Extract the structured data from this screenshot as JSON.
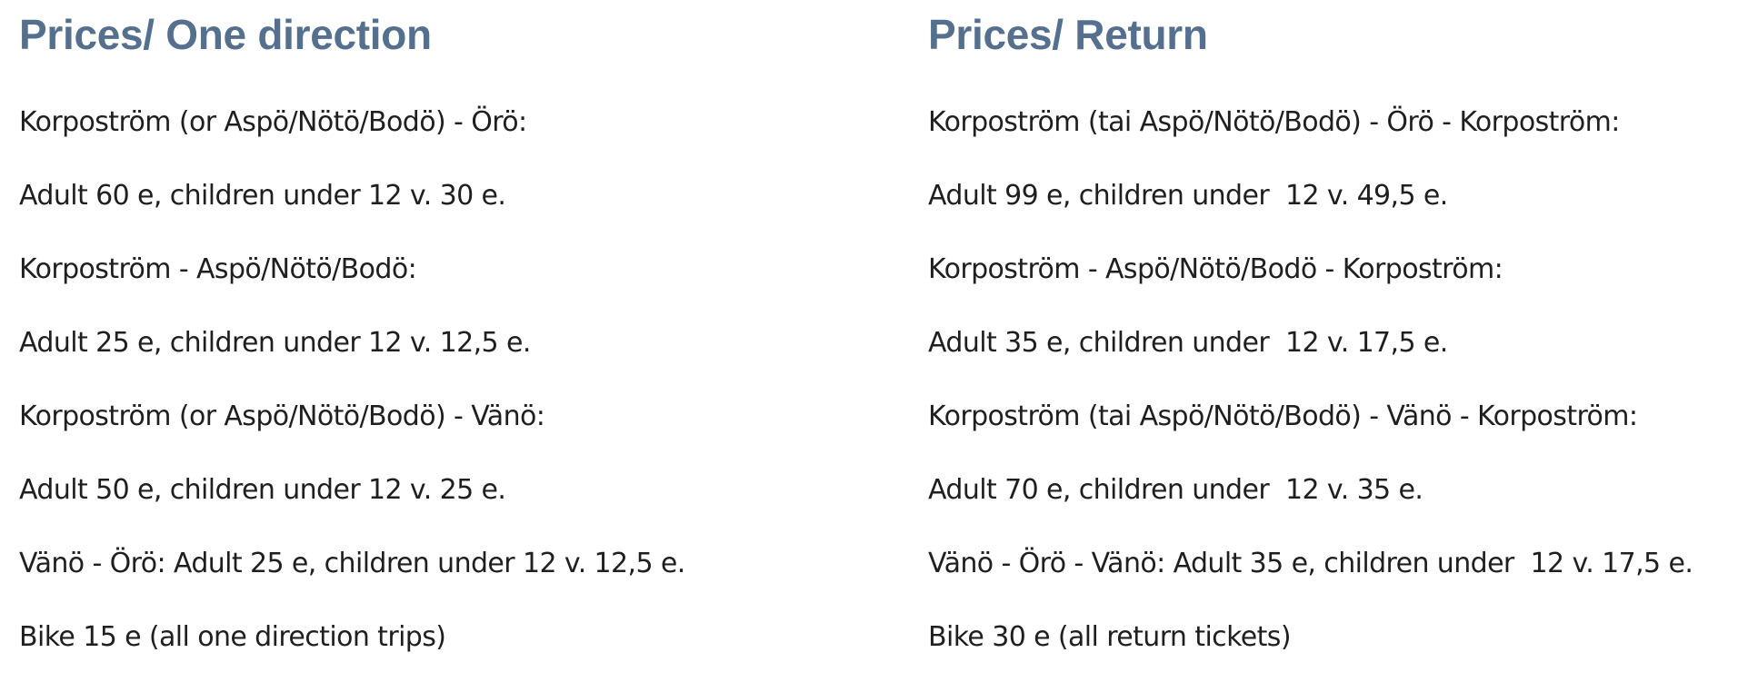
{
  "one_direction": {
    "heading": "Prices/ One direction",
    "lines": [
      "Korpoström (or Aspö/Nötö/Bodö) - Örö:",
      "Adult 60 e, children under 12 v. 30 e.",
      "Korpoström - Aspö/Nötö/Bodö:",
      "Adult 25 e, children under 12 v. 12,5 e.",
      "Korpoström (or Aspö/Nötö/Bodö) - Vänö:",
      "Adult 50 e, children under 12 v. 25 e.",
      "Vänö - Örö: Adult 25 e, children under 12 v. 12,5 e.",
      "Bike 15 e (all one direction trips)"
    ]
  },
  "return": {
    "heading": "Prices/ Return",
    "lines": [
      "Korpoström (tai Aspö/Nötö/Bodö) - Örö - Korpoström:",
      "Adult 99 e, children under  12 v. 49,5 e.",
      "Korpoström - Aspö/Nötö/Bodö - Korpoström:",
      "Adult 35 e, children under  12 v. 17,5 e.",
      "Korpoström (tai Aspö/Nötö/Bodö) - Vänö - Korpoström:",
      "Adult 70 e, children under  12 v. 35 e.",
      "Vänö - Örö - Vänö: Adult 35 e, children under  12 v. 17,5 e.",
      "Bike 30 e (all return tickets)"
    ]
  },
  "colors": {
    "heading": "#55708f",
    "text": "#1f1f1f",
    "background": "#ffffff"
  }
}
